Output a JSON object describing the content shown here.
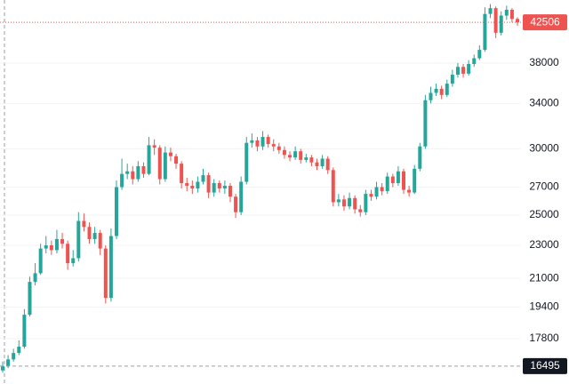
{
  "chart_data": {
    "type": "candlestick",
    "log_scale": true,
    "grid": true,
    "up_color": "#26a69a",
    "down_color": "#ef5350",
    "ylim": [
      15700,
      45200
    ],
    "yticks": [
      17800,
      19400,
      21000,
      23000,
      25000,
      27000,
      30000,
      34000,
      38000
    ],
    "last_price": 42506,
    "marked_low": 16495,
    "open": [
      16300,
      16500,
      16800,
      17100,
      17400,
      19000,
      20800,
      21300,
      22800,
      23000,
      22700,
      23400,
      23100,
      21900,
      22200,
      24600,
      24200,
      23400,
      23800,
      22800,
      19900,
      23600,
      27000,
      28000,
      28200,
      27600,
      28600,
      28000,
      30300,
      30100,
      27600,
      29700,
      29400,
      28800,
      27300,
      27100,
      26900,
      27400,
      27900,
      26600,
      27300,
      26900,
      27100,
      26300,
      25200,
      27400,
      30500,
      30700,
      30200,
      31000,
      30400,
      30200,
      29900,
      29500,
      29300,
      29800,
      29100,
      29300,
      28900,
      28600,
      29200,
      28300,
      25900,
      26100,
      25600,
      26200,
      25400,
      25200,
      26500,
      26300,
      27000,
      26700,
      27800,
      27300,
      28200,
      26800,
      26600,
      28400,
      30200,
      34300,
      35000,
      35400,
      34800,
      35900,
      36800,
      37600,
      36900,
      37900,
      38500,
      39400,
      43500,
      44200,
      41300,
      43300,
      44000,
      42900
    ],
    "high": [
      16700,
      17000,
      17300,
      17700,
      19300,
      21100,
      21900,
      23100,
      23600,
      23300,
      24000,
      23800,
      23300,
      22700,
      25200,
      25100,
      24500,
      24200,
      24000,
      23000,
      24100,
      27500,
      29200,
      28800,
      28600,
      29000,
      28900,
      31000,
      30800,
      30300,
      30200,
      30100,
      29600,
      29000,
      27700,
      27500,
      27800,
      28400,
      28100,
      27600,
      27500,
      27500,
      27300,
      26500,
      27800,
      31000,
      31300,
      31000,
      31500,
      31200,
      30800,
      30500,
      30200,
      29800,
      30200,
      30000,
      29600,
      29500,
      29200,
      29500,
      29400,
      28500,
      26500,
      26400,
      26600,
      26400,
      25700,
      26800,
      26800,
      27400,
      27300,
      28100,
      28000,
      28600,
      28400,
      27100,
      28700,
      30500,
      34800,
      35600,
      35900,
      35700,
      36300,
      37300,
      38000,
      37900,
      38300,
      38900,
      39900,
      44300,
      44700,
      44400,
      43800,
      44500,
      44200,
      43100
    ],
    "low": [
      16200,
      16400,
      16700,
      17000,
      17300,
      18900,
      20600,
      21200,
      22500,
      22400,
      22500,
      22800,
      21500,
      21700,
      22000,
      23900,
      23100,
      23100,
      22400,
      19600,
      19700,
      23400,
      26800,
      27600,
      27200,
      27400,
      27700,
      27900,
      29500,
      27200,
      27400,
      29000,
      28400,
      26900,
      26700,
      26500,
      26600,
      27200,
      26200,
      26300,
      26600,
      26500,
      25900,
      24800,
      25000,
      27200,
      30100,
      29800,
      29900,
      30100,
      29800,
      29600,
      29200,
      29000,
      29100,
      28800,
      28900,
      28600,
      28300,
      28400,
      28000,
      25600,
      25600,
      25300,
      25400,
      25100,
      24900,
      25000,
      26000,
      26100,
      26400,
      26500,
      27000,
      27100,
      26500,
      26300,
      26500,
      28200,
      30000,
      34000,
      34700,
      34400,
      34600,
      35600,
      36500,
      36500,
      36700,
      37600,
      38300,
      39200,
      43000,
      40700,
      41000,
      42800,
      42500,
      42100
    ],
    "close": [
      16500,
      16800,
      17100,
      17400,
      19000,
      20800,
      21300,
      22800,
      23000,
      22700,
      23400,
      23100,
      21900,
      22200,
      24600,
      24200,
      23400,
      23800,
      22800,
      19900,
      23600,
      27000,
      28000,
      28200,
      27600,
      28600,
      28000,
      30300,
      30100,
      27600,
      29700,
      29400,
      28800,
      27300,
      27100,
      26900,
      27400,
      27900,
      26600,
      27300,
      26900,
      27100,
      26300,
      25200,
      27400,
      30500,
      30700,
      30200,
      31000,
      30400,
      30200,
      29900,
      29500,
      29300,
      29800,
      29100,
      29300,
      28900,
      28600,
      29200,
      28300,
      25900,
      26100,
      25600,
      26200,
      25400,
      25200,
      26500,
      26300,
      27000,
      26700,
      27800,
      27300,
      28200,
      26800,
      26600,
      28400,
      30200,
      34300,
      35000,
      35400,
      34800,
      35900,
      36800,
      37600,
      36900,
      37900,
      38500,
      39400,
      43500,
      44200,
      41300,
      43300,
      44000,
      42900,
      42506
    ]
  }
}
